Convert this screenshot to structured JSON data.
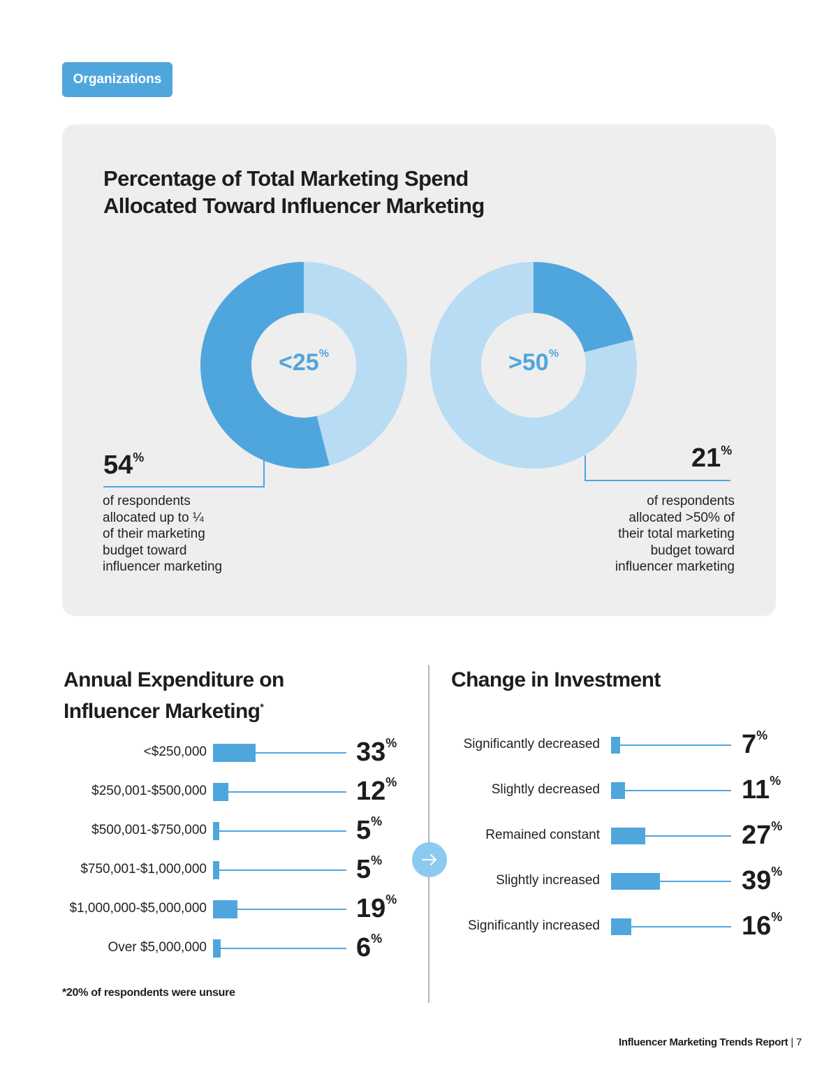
{
  "tag_label": "Organizations",
  "colors": {
    "accent": "#4fa6dd",
    "light": "#b8dcf3",
    "arrow": "#8dcaef",
    "panel": "#eeeeee"
  },
  "chart_data": [
    {
      "type": "pie",
      "title_lines": [
        "Percentage of Total Marketing Spend",
        "Allocated Toward Influencer Marketing"
      ],
      "donuts": [
        {
          "center_label": "<25",
          "center_unit": "%",
          "highlight_value": 54,
          "stat_value": "54",
          "stat_unit": "%",
          "desc_lines": [
            "of respondents",
            "allocated up to ¼",
            "of their marketing",
            "budget toward",
            "influencer marketing"
          ]
        },
        {
          "center_label": ">50",
          "center_unit": "%",
          "highlight_value": 21,
          "stat_value": "21",
          "stat_unit": "%",
          "desc_lines": [
            "of respondents",
            "allocated >50% of",
            "their total marketing",
            "budget toward",
            "influencer marketing"
          ]
        }
      ]
    },
    {
      "type": "bar",
      "title_lines": [
        "Annual Expenditure on",
        "Influencer Marketing"
      ],
      "title_mark": "*",
      "unit": "%",
      "categories": [
        "<$250,000",
        "$250,001-$500,000",
        "$500,001-$750,000",
        "$750,001-$1,000,000",
        "$1,000,000-$5,000,000",
        "Over $5,000,000"
      ],
      "values": [
        33,
        12,
        5,
        5,
        19,
        6
      ],
      "value_labels": [
        "33",
        "12",
        "5",
        "5",
        "19",
        "6"
      ],
      "footnote": "*20% of respondents were unsure"
    },
    {
      "type": "bar",
      "title_lines": [
        "Change in Investment"
      ],
      "unit": "%",
      "categories": [
        "Significantly decreased",
        "Slightly decreased",
        "Remained constant",
        "Slightly increased",
        "Significantly increased"
      ],
      "values": [
        7,
        11,
        27,
        39,
        16
      ],
      "value_labels": [
        "7",
        "11",
        "27",
        "39",
        "16"
      ]
    }
  ],
  "footer": {
    "report": "Influencer Marketing Trends Report",
    "separator": "|",
    "page": "7"
  }
}
